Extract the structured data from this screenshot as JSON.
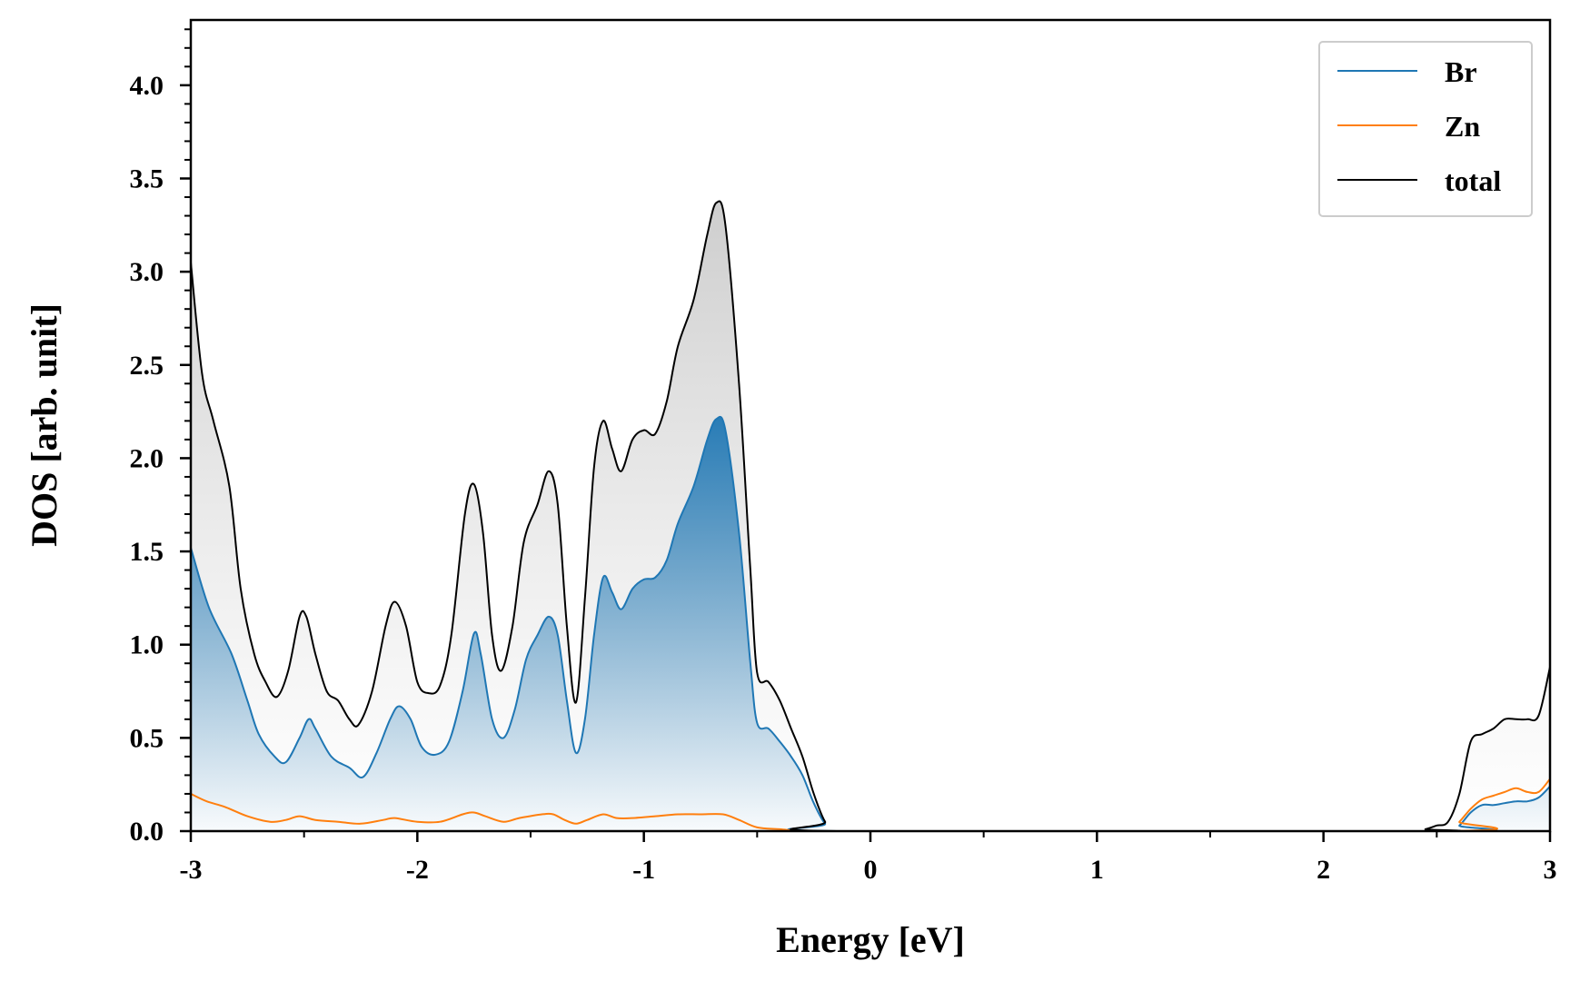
{
  "chart_data": {
    "type": "line",
    "xlabel": "Energy [eV]",
    "ylabel": "DOS [arb. unit]",
    "xlim": [
      -3,
      3
    ],
    "ylim": [
      0,
      4.35
    ],
    "x_ticks": [
      -3,
      -2,
      -1,
      0,
      1,
      2,
      3
    ],
    "x_tick_labels": [
      "-3",
      "-2",
      "-1",
      "0",
      "1",
      "2",
      "3"
    ],
    "y_ticks": [
      0.0,
      0.5,
      1.0,
      1.5,
      2.0,
      2.5,
      3.0,
      3.5,
      4.0
    ],
    "y_tick_labels": [
      "0.0",
      "0.5",
      "1.0",
      "1.5",
      "2.0",
      "2.5",
      "3.0",
      "3.5",
      "4.0"
    ],
    "grid": false,
    "legend_position": "top-right",
    "series": [
      {
        "name": "Br",
        "color": "#1f77b4",
        "fill": "gradient",
        "points": [
          [
            -3.0,
            1.52
          ],
          [
            -2.92,
            1.2
          ],
          [
            -2.82,
            0.95
          ],
          [
            -2.75,
            0.7
          ],
          [
            -2.7,
            0.52
          ],
          [
            -2.63,
            0.4
          ],
          [
            -2.58,
            0.37
          ],
          [
            -2.52,
            0.5
          ],
          [
            -2.48,
            0.6
          ],
          [
            -2.45,
            0.55
          ],
          [
            -2.38,
            0.4
          ],
          [
            -2.3,
            0.34
          ],
          [
            -2.24,
            0.29
          ],
          [
            -2.18,
            0.42
          ],
          [
            -2.12,
            0.6
          ],
          [
            -2.08,
            0.67
          ],
          [
            -2.03,
            0.6
          ],
          [
            -1.98,
            0.45
          ],
          [
            -1.92,
            0.41
          ],
          [
            -1.86,
            0.48
          ],
          [
            -1.8,
            0.75
          ],
          [
            -1.75,
            1.06
          ],
          [
            -1.72,
            0.95
          ],
          [
            -1.67,
            0.6
          ],
          [
            -1.62,
            0.5
          ],
          [
            -1.57,
            0.65
          ],
          [
            -1.52,
            0.92
          ],
          [
            -1.47,
            1.05
          ],
          [
            -1.42,
            1.15
          ],
          [
            -1.38,
            1.05
          ],
          [
            -1.34,
            0.7
          ],
          [
            -1.3,
            0.42
          ],
          [
            -1.26,
            0.6
          ],
          [
            -1.22,
            1.05
          ],
          [
            -1.18,
            1.36
          ],
          [
            -1.14,
            1.28
          ],
          [
            -1.1,
            1.19
          ],
          [
            -1.05,
            1.3
          ],
          [
            -1.0,
            1.35
          ],
          [
            -0.95,
            1.36
          ],
          [
            -0.9,
            1.45
          ],
          [
            -0.85,
            1.65
          ],
          [
            -0.78,
            1.85
          ],
          [
            -0.72,
            2.1
          ],
          [
            -0.68,
            2.21
          ],
          [
            -0.64,
            2.15
          ],
          [
            -0.58,
            1.6
          ],
          [
            -0.53,
            0.9
          ],
          [
            -0.5,
            0.58
          ],
          [
            -0.45,
            0.55
          ],
          [
            -0.4,
            0.48
          ],
          [
            -0.35,
            0.4
          ],
          [
            -0.3,
            0.3
          ],
          [
            -0.25,
            0.15
          ],
          [
            -0.2,
            0.04
          ],
          [
            -0.15,
            0.0
          ],
          [
            2.55,
            0.0
          ],
          [
            2.6,
            0.03
          ],
          [
            2.65,
            0.1
          ],
          [
            2.7,
            0.14
          ],
          [
            2.75,
            0.14
          ],
          [
            2.8,
            0.15
          ],
          [
            2.85,
            0.16
          ],
          [
            2.9,
            0.16
          ],
          [
            2.95,
            0.18
          ],
          [
            3.0,
            0.24
          ]
        ]
      },
      {
        "name": "Zn",
        "color": "#ff7f0e",
        "fill": "none",
        "points": [
          [
            -3.0,
            0.2
          ],
          [
            -2.93,
            0.16
          ],
          [
            -2.85,
            0.13
          ],
          [
            -2.75,
            0.08
          ],
          [
            -2.65,
            0.05
          ],
          [
            -2.58,
            0.06
          ],
          [
            -2.52,
            0.08
          ],
          [
            -2.45,
            0.06
          ],
          [
            -2.35,
            0.05
          ],
          [
            -2.25,
            0.04
          ],
          [
            -2.15,
            0.06
          ],
          [
            -2.1,
            0.07
          ],
          [
            -2.0,
            0.05
          ],
          [
            -1.9,
            0.05
          ],
          [
            -1.8,
            0.09
          ],
          [
            -1.75,
            0.1
          ],
          [
            -1.7,
            0.08
          ],
          [
            -1.62,
            0.05
          ],
          [
            -1.55,
            0.07
          ],
          [
            -1.45,
            0.09
          ],
          [
            -1.4,
            0.09
          ],
          [
            -1.35,
            0.06
          ],
          [
            -1.3,
            0.04
          ],
          [
            -1.25,
            0.06
          ],
          [
            -1.18,
            0.09
          ],
          [
            -1.12,
            0.07
          ],
          [
            -1.05,
            0.07
          ],
          [
            -0.95,
            0.08
          ],
          [
            -0.85,
            0.09
          ],
          [
            -0.75,
            0.09
          ],
          [
            -0.65,
            0.09
          ],
          [
            -0.58,
            0.06
          ],
          [
            -0.5,
            0.02
          ],
          [
            -0.4,
            0.01
          ],
          [
            -0.3,
            0.0
          ],
          [
            -0.2,
            0.0
          ],
          [
            2.55,
            0.0
          ],
          [
            2.6,
            0.05
          ],
          [
            2.65,
            0.12
          ],
          [
            2.7,
            0.17
          ],
          [
            2.75,
            0.19
          ],
          [
            2.8,
            0.21
          ],
          [
            2.85,
            0.23
          ],
          [
            2.9,
            0.21
          ],
          [
            2.95,
            0.21
          ],
          [
            3.0,
            0.28
          ]
        ]
      },
      {
        "name": "total",
        "color": "#000000",
        "fill": "gray",
        "points": [
          [
            -3.0,
            3.05
          ],
          [
            -2.95,
            2.45
          ],
          [
            -2.9,
            2.2
          ],
          [
            -2.83,
            1.85
          ],
          [
            -2.78,
            1.3
          ],
          [
            -2.72,
            0.95
          ],
          [
            -2.67,
            0.8
          ],
          [
            -2.62,
            0.72
          ],
          [
            -2.57,
            0.86
          ],
          [
            -2.52,
            1.15
          ],
          [
            -2.49,
            1.15
          ],
          [
            -2.45,
            0.95
          ],
          [
            -2.4,
            0.75
          ],
          [
            -2.35,
            0.7
          ],
          [
            -2.3,
            0.6
          ],
          [
            -2.26,
            0.57
          ],
          [
            -2.2,
            0.75
          ],
          [
            -2.14,
            1.1
          ],
          [
            -2.1,
            1.23
          ],
          [
            -2.05,
            1.1
          ],
          [
            -2.0,
            0.8
          ],
          [
            -1.95,
            0.74
          ],
          [
            -1.9,
            0.78
          ],
          [
            -1.85,
            1.05
          ],
          [
            -1.79,
            1.7
          ],
          [
            -1.75,
            1.86
          ],
          [
            -1.71,
            1.6
          ],
          [
            -1.67,
            1.05
          ],
          [
            -1.63,
            0.86
          ],
          [
            -1.58,
            1.1
          ],
          [
            -1.53,
            1.55
          ],
          [
            -1.47,
            1.75
          ],
          [
            -1.42,
            1.93
          ],
          [
            -1.38,
            1.75
          ],
          [
            -1.34,
            1.1
          ],
          [
            -1.3,
            0.69
          ],
          [
            -1.26,
            1.25
          ],
          [
            -1.22,
            1.95
          ],
          [
            -1.18,
            2.2
          ],
          [
            -1.14,
            2.05
          ],
          [
            -1.1,
            1.93
          ],
          [
            -1.05,
            2.1
          ],
          [
            -1.0,
            2.15
          ],
          [
            -0.95,
            2.13
          ],
          [
            -0.9,
            2.3
          ],
          [
            -0.85,
            2.6
          ],
          [
            -0.78,
            2.85
          ],
          [
            -0.72,
            3.2
          ],
          [
            -0.68,
            3.37
          ],
          [
            -0.64,
            3.25
          ],
          [
            -0.58,
            2.4
          ],
          [
            -0.53,
            1.4
          ],
          [
            -0.5,
            0.85
          ],
          [
            -0.45,
            0.8
          ],
          [
            -0.4,
            0.7
          ],
          [
            -0.35,
            0.55
          ],
          [
            -0.3,
            0.4
          ],
          [
            -0.25,
            0.2
          ],
          [
            -0.2,
            0.05
          ],
          [
            -0.15,
            0.0
          ],
          [
            2.4,
            0.0
          ],
          [
            2.45,
            0.01
          ],
          [
            2.5,
            0.03
          ],
          [
            2.55,
            0.05
          ],
          [
            2.6,
            0.2
          ],
          [
            2.65,
            0.48
          ],
          [
            2.7,
            0.52
          ],
          [
            2.75,
            0.55
          ],
          [
            2.8,
            0.6
          ],
          [
            2.85,
            0.6
          ],
          [
            2.9,
            0.6
          ],
          [
            2.95,
            0.62
          ],
          [
            3.0,
            0.88
          ]
        ]
      }
    ]
  }
}
